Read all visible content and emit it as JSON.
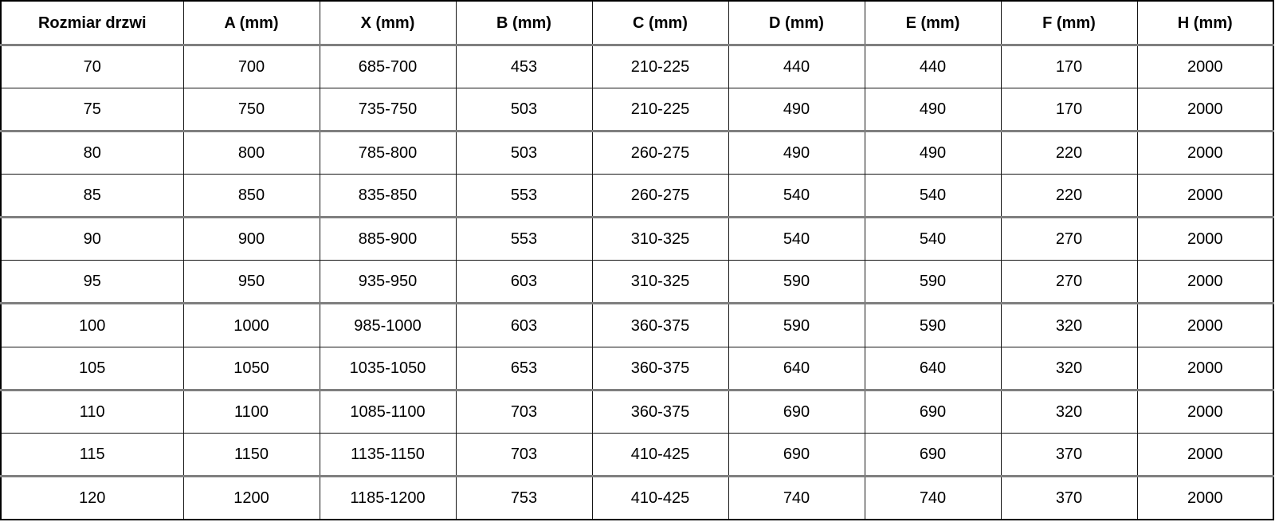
{
  "table": {
    "name": "shower-door-dimensions",
    "columns": [
      "Rozmiar drzwi",
      "A (mm)",
      "X (mm)",
      "B (mm)",
      "C (mm)",
      "D (mm)",
      "E (mm)",
      "F (mm)",
      "H (mm)"
    ],
    "rows": [
      [
        "70",
        "700",
        "685-700",
        "453",
        "210-225",
        "440",
        "440",
        "170",
        "2000"
      ],
      [
        "75",
        "750",
        "735-750",
        "503",
        "210-225",
        "490",
        "490",
        "170",
        "2000"
      ],
      [
        "80",
        "800",
        "785-800",
        "503",
        "260-275",
        "490",
        "490",
        "220",
        "2000"
      ],
      [
        "85",
        "850",
        "835-850",
        "553",
        "260-275",
        "540",
        "540",
        "220",
        "2000"
      ],
      [
        "90",
        "900",
        "885-900",
        "553",
        "310-325",
        "540",
        "540",
        "270",
        "2000"
      ],
      [
        "95",
        "950",
        "935-950",
        "603",
        "310-325",
        "590",
        "590",
        "270",
        "2000"
      ],
      [
        "100",
        "1000",
        "985-1000",
        "603",
        "360-375",
        "590",
        "590",
        "320",
        "2000"
      ],
      [
        "105",
        "1050",
        "1035-1050",
        "653",
        "360-375",
        "640",
        "640",
        "320",
        "2000"
      ],
      [
        "110",
        "1100",
        "1085-1100",
        "703",
        "360-375",
        "690",
        "690",
        "320",
        "2000"
      ],
      [
        "115",
        "1150",
        "1135-1150",
        "703",
        "410-425",
        "690",
        "690",
        "370",
        "2000"
      ],
      [
        "120",
        "1200",
        "1185-1200",
        "753",
        "410-425",
        "740",
        "740",
        "370",
        "2000"
      ]
    ],
    "thick_separator_after_row_indexes": [
      1,
      3,
      5,
      7,
      9
    ]
  },
  "chart_data": {
    "type": "table",
    "title": "",
    "columns": [
      "Rozmiar drzwi",
      "A (mm)",
      "X (mm)",
      "B (mm)",
      "C (mm)",
      "D (mm)",
      "E (mm)",
      "F (mm)",
      "H (mm)"
    ],
    "rows": [
      [
        "70",
        "700",
        "685-700",
        "453",
        "210-225",
        "440",
        "440",
        "170",
        "2000"
      ],
      [
        "75",
        "750",
        "735-750",
        "503",
        "210-225",
        "490",
        "490",
        "170",
        "2000"
      ],
      [
        "80",
        "800",
        "785-800",
        "503",
        "260-275",
        "490",
        "490",
        "220",
        "2000"
      ],
      [
        "85",
        "850",
        "835-850",
        "553",
        "260-275",
        "540",
        "540",
        "220",
        "2000"
      ],
      [
        "90",
        "900",
        "885-900",
        "553",
        "310-325",
        "540",
        "540",
        "270",
        "2000"
      ],
      [
        "95",
        "950",
        "935-950",
        "603",
        "310-325",
        "590",
        "590",
        "270",
        "2000"
      ],
      [
        "100",
        "1000",
        "985-1000",
        "603",
        "360-375",
        "590",
        "590",
        "320",
        "2000"
      ],
      [
        "105",
        "1050",
        "1035-1050",
        "653",
        "360-375",
        "640",
        "640",
        "320",
        "2000"
      ],
      [
        "110",
        "1100",
        "1085-1100",
        "703",
        "360-375",
        "690",
        "690",
        "320",
        "2000"
      ],
      [
        "115",
        "1150",
        "1135-1150",
        "703",
        "410-425",
        "690",
        "690",
        "370",
        "2000"
      ],
      [
        "120",
        "1200",
        "1185-1200",
        "753",
        "410-425",
        "740",
        "740",
        "370",
        "2000"
      ]
    ]
  },
  "colors": {
    "border_thin": "#161616",
    "border_thick": "#7f7f7f",
    "border_outer": "#000000",
    "text": "#000000",
    "background": "#ffffff"
  }
}
